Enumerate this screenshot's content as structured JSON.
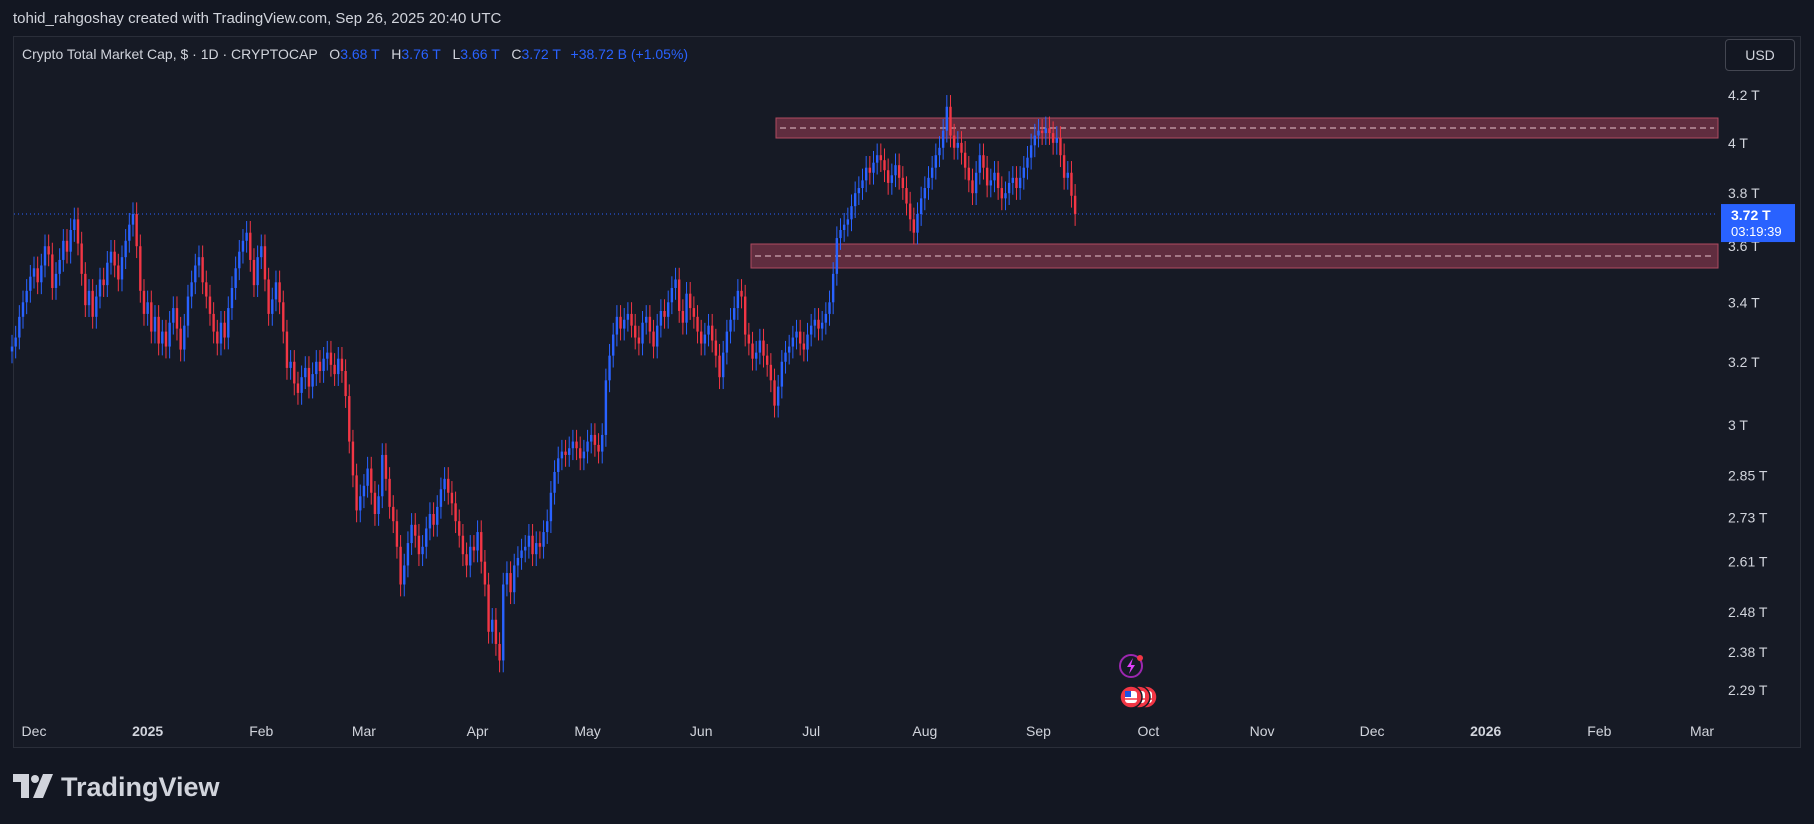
{
  "header": {
    "credit": "tohid_rahgoshay created with TradingView.com, Sep 26, 2025 20:40 UTC"
  },
  "legend": {
    "symbol": "Crypto Total Market Cap, $ · 1D · CRYPTOCAP",
    "o_label": "O",
    "o_value": "3.68 T",
    "h_label": "H",
    "h_value": "3.76 T",
    "l_label": "L",
    "l_value": "3.66 T",
    "c_label": "C",
    "c_value": "3.72 T",
    "change": "+38.72 B (+1.05%)"
  },
  "currency_button": "USD",
  "price_tag": {
    "value": "3.72 T",
    "countdown": "03:19:39"
  },
  "footer": {
    "brand": "TradingView"
  },
  "colors": {
    "up": "#2962ff",
    "down": "#f23645",
    "zone": "#7a3448",
    "zone_border": "#b04a60",
    "background": "#161a25"
  },
  "chart_data": {
    "type": "candlestick",
    "title": "Crypto Total Market Cap",
    "xlabel": "",
    "ylabel": "",
    "y_scale": "log",
    "ylim": [
      2.22,
      4.4
    ],
    "y_ticks": [
      "4.2 T",
      "4 T",
      "3.8 T",
      "3.72 T",
      "3.6 T",
      "3.4 T",
      "3.2 T",
      "3 T",
      "2.85 T",
      "2.73 T",
      "2.61 T",
      "2.48 T",
      "2.38 T",
      "2.29 T"
    ],
    "y_tick_values": [
      4.2,
      4.0,
      3.8,
      3.72,
      3.6,
      3.4,
      3.2,
      3.0,
      2.85,
      2.73,
      2.61,
      2.48,
      2.38,
      2.29
    ],
    "x_ticks": [
      "Dec",
      "2025",
      "Feb",
      "Mar",
      "Apr",
      "May",
      "Jun",
      "Jul",
      "Aug",
      "Sep",
      "Oct",
      "Nov",
      "Dec",
      "2026",
      "Feb",
      "Mar"
    ],
    "x_tick_dates": [
      "2024-12-01",
      "2025-01-01",
      "2025-02-01",
      "2025-03-01",
      "2025-04-01",
      "2025-05-01",
      "2025-06-01",
      "2025-07-01",
      "2025-08-01",
      "2025-09-01",
      "2025-10-01",
      "2025-11-01",
      "2025-12-01",
      "2026-01-01",
      "2026-02-01",
      "2026-03-01"
    ],
    "series": [
      {
        "start": "2024-11-25",
        "close": [
          3.25,
          3.28,
          3.35,
          3.4,
          3.44,
          3.49,
          3.52,
          3.47,
          3.53,
          3.6,
          3.57,
          3.45,
          3.5,
          3.55,
          3.62,
          3.58,
          3.66,
          3.7,
          3.61,
          3.5,
          3.39,
          3.44,
          3.35,
          3.42,
          3.48,
          3.46,
          3.54,
          3.58,
          3.53,
          3.48,
          3.56,
          3.62,
          3.68,
          3.72,
          3.6,
          3.44,
          3.36,
          3.4,
          3.3,
          3.35,
          3.26,
          3.3,
          3.25,
          3.33,
          3.38,
          3.31,
          3.24,
          3.32,
          3.42,
          3.47,
          3.53,
          3.56,
          3.47,
          3.42,
          3.36,
          3.3,
          3.26,
          3.33,
          3.28,
          3.38,
          3.45,
          3.52,
          3.58,
          3.62,
          3.65,
          3.55,
          3.46,
          3.56,
          3.6,
          3.48,
          3.36,
          3.41,
          3.47,
          3.4,
          3.3,
          3.18,
          3.2,
          3.13,
          3.1,
          3.15,
          3.18,
          3.12,
          3.16,
          3.2,
          3.17,
          3.21,
          3.23,
          3.19,
          3.16,
          3.21,
          3.17,
          3.09,
          2.95,
          2.85,
          2.75,
          2.79,
          2.82,
          2.87,
          2.8,
          2.74,
          2.79,
          2.91,
          2.84,
          2.76,
          2.72,
          2.65,
          2.55,
          2.6,
          2.66,
          2.71,
          2.68,
          2.63,
          2.65,
          2.7,
          2.74,
          2.71,
          2.76,
          2.81,
          2.84,
          2.8,
          2.77,
          2.72,
          2.68,
          2.63,
          2.6,
          2.65,
          2.64,
          2.69,
          2.61,
          2.55,
          2.43,
          2.46,
          2.4,
          2.36,
          2.55,
          2.58,
          2.53,
          2.6,
          2.62,
          2.64,
          2.65,
          2.68,
          2.63,
          2.66,
          2.65,
          2.69,
          2.72,
          2.8,
          2.86,
          2.9,
          2.92,
          2.91,
          2.93,
          2.95,
          2.93,
          2.9,
          2.92,
          2.95,
          2.97,
          2.94,
          2.92,
          2.97,
          3.14,
          3.22,
          3.29,
          3.35,
          3.31,
          3.34,
          3.36,
          3.32,
          3.28,
          3.26,
          3.33,
          3.35,
          3.3,
          3.25,
          3.32,
          3.37,
          3.35,
          3.4,
          3.45,
          3.48,
          3.37,
          3.33,
          3.43,
          3.38,
          3.35,
          3.3,
          3.26,
          3.29,
          3.32,
          3.27,
          3.22,
          3.15,
          3.23,
          3.3,
          3.34,
          3.38,
          3.44,
          3.42,
          3.29,
          3.26,
          3.21,
          3.23,
          3.27,
          3.22,
          3.19,
          3.14,
          3.06,
          3.12,
          3.2,
          3.23,
          3.25,
          3.28,
          3.3,
          3.26,
          3.24,
          3.29,
          3.32,
          3.34,
          3.31,
          3.33,
          3.36,
          3.4,
          3.5,
          3.63,
          3.66,
          3.68,
          3.7,
          3.75,
          3.8,
          3.82,
          3.85,
          3.9,
          3.88,
          3.92,
          3.95,
          3.93,
          3.89,
          3.84,
          3.87,
          3.91,
          3.86,
          3.82,
          3.76,
          3.7,
          3.65,
          3.72,
          3.78,
          3.82,
          3.86,
          3.9,
          3.95,
          3.98,
          4.05,
          4.15,
          4.03,
          3.98,
          4.0,
          3.96,
          3.9,
          3.85,
          3.8,
          3.88,
          3.95,
          3.9,
          3.83,
          3.85,
          3.88,
          3.82,
          3.78,
          3.8,
          3.84,
          3.86,
          3.82,
          3.86,
          3.9,
          3.94,
          3.99,
          4.03,
          4.05,
          4.04,
          4.06,
          4.04,
          4.0,
          4.02,
          3.95,
          3.86,
          3.88,
          3.79,
          3.72
        ]
      }
    ]
  }
}
